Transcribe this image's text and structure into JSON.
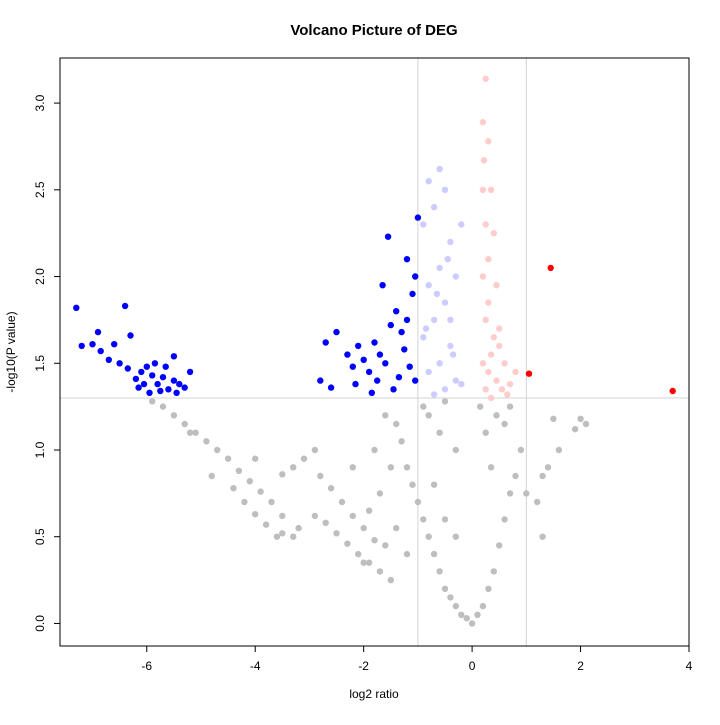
{
  "chart_data": {
    "type": "scatter",
    "title": "Volcano Picture of DEG",
    "xlabel": "log2 ratio",
    "ylabel": "-log10(P value)",
    "xlim": [
      -7.6,
      4.0
    ],
    "ylim": [
      -0.13,
      3.26
    ],
    "xticks": [
      -6,
      -4,
      -2,
      0,
      2,
      4
    ],
    "yticks": [
      0.0,
      0.5,
      1.0,
      1.5,
      2.0,
      2.5,
      3.0
    ],
    "xtick_labels": [
      "-6",
      "-4",
      "-2",
      "0",
      "2",
      "4"
    ],
    "ytick_labels": [
      "0.0",
      "0.5",
      "1.0",
      "1.5",
      "2.0",
      "2.5",
      "3.0"
    ],
    "reference_lines": {
      "vertical": [
        -1,
        1
      ],
      "horizontal": [
        1.3
      ],
      "color": "#d3d3d3"
    },
    "grid": false,
    "series": [
      {
        "role": "not-significant",
        "color": "#bebebe",
        "points": [
          [
            -5.9,
            1.28
          ],
          [
            -5.7,
            1.25
          ],
          [
            -5.5,
            1.2
          ],
          [
            -5.3,
            1.15
          ],
          [
            -5.1,
            1.1
          ],
          [
            -4.9,
            1.05
          ],
          [
            -4.7,
            1.0
          ],
          [
            -4.5,
            0.95
          ],
          [
            -4.3,
            0.88
          ],
          [
            -4.1,
            0.82
          ],
          [
            -3.9,
            0.76
          ],
          [
            -3.7,
            0.7
          ],
          [
            -3.5,
            0.62
          ],
          [
            -3.8,
            0.57
          ],
          [
            -4.0,
            0.63
          ],
          [
            -4.2,
            0.7
          ],
          [
            -3.5,
            0.52
          ],
          [
            -3.3,
            0.5
          ],
          [
            -2.9,
            0.62
          ],
          [
            -2.7,
            0.58
          ],
          [
            -2.5,
            0.52
          ],
          [
            -2.3,
            0.46
          ],
          [
            -2.1,
            0.4
          ],
          [
            -1.9,
            0.35
          ],
          [
            -1.7,
            0.3
          ],
          [
            -1.5,
            0.25
          ],
          [
            -2.9,
            1.0
          ],
          [
            -3.1,
            0.95
          ],
          [
            -3.3,
            0.9
          ],
          [
            -3.5,
            0.86
          ],
          [
            -2.8,
            0.85
          ],
          [
            -2.6,
            0.78
          ],
          [
            -2.4,
            0.7
          ],
          [
            -2.2,
            0.62
          ],
          [
            -2.0,
            0.55
          ],
          [
            -1.8,
            0.48
          ],
          [
            -1.6,
            0.45
          ],
          [
            -4.0,
            0.95
          ],
          [
            -3.6,
            0.5
          ],
          [
            -2.2,
            0.9
          ],
          [
            -1.8,
            1.0
          ],
          [
            -1.6,
            1.2
          ],
          [
            -1.4,
            1.15
          ],
          [
            -1.3,
            1.05
          ],
          [
            -1.2,
            0.9
          ],
          [
            -1.1,
            0.8
          ],
          [
            -1.0,
            0.7
          ],
          [
            -0.9,
            0.6
          ],
          [
            -0.8,
            0.5
          ],
          [
            -0.7,
            0.4
          ],
          [
            -0.6,
            0.3
          ],
          [
            -0.5,
            0.2
          ],
          [
            -0.4,
            0.15
          ],
          [
            -0.3,
            0.1
          ],
          [
            -0.2,
            0.05
          ],
          [
            -0.1,
            0.03
          ],
          [
            0.0,
            0.0
          ],
          [
            0.1,
            0.05
          ],
          [
            0.2,
            0.1
          ],
          [
            0.3,
            0.2
          ],
          [
            0.4,
            0.3
          ],
          [
            0.5,
            0.45
          ],
          [
            0.6,
            0.6
          ],
          [
            0.7,
            0.75
          ],
          [
            0.8,
            0.85
          ],
          [
            0.9,
            1.0
          ],
          [
            1.0,
            0.75
          ],
          [
            1.2,
            0.7
          ],
          [
            1.3,
            0.85
          ],
          [
            1.4,
            0.9
          ],
          [
            1.5,
            1.18
          ],
          [
            1.6,
            1.0
          ],
          [
            1.9,
            1.12
          ],
          [
            2.0,
            1.18
          ],
          [
            2.1,
            1.15
          ],
          [
            1.3,
            0.5
          ],
          [
            0.15,
            1.25
          ],
          [
            0.25,
            1.1
          ],
          [
            0.35,
            0.9
          ],
          [
            0.45,
            1.2
          ],
          [
            -0.9,
            1.25
          ],
          [
            -0.5,
            1.28
          ],
          [
            -0.3,
            1.0
          ],
          [
            -0.6,
            1.1
          ],
          [
            -0.8,
            1.2
          ],
          [
            -1.5,
            0.9
          ],
          [
            -1.7,
            0.75
          ],
          [
            -1.9,
            0.65
          ],
          [
            -0.5,
            0.6
          ],
          [
            -0.3,
            0.5
          ],
          [
            -0.7,
            0.8
          ],
          [
            -1.2,
            0.4
          ],
          [
            -1.4,
            0.55
          ],
          [
            0.6,
            1.15
          ],
          [
            0.7,
            1.25
          ],
          [
            -5.2,
            1.1
          ],
          [
            -4.8,
            0.85
          ],
          [
            -4.4,
            0.78
          ],
          [
            -3.2,
            0.55
          ],
          [
            -2.0,
            0.35
          ]
        ]
      },
      {
        "role": "down-weak",
        "color": "#ccccff",
        "points": [
          [
            -0.6,
            2.62
          ],
          [
            -0.8,
            2.55
          ],
          [
            -0.5,
            2.5
          ],
          [
            -0.7,
            2.4
          ],
          [
            -0.9,
            2.3
          ],
          [
            -0.4,
            2.2
          ],
          [
            -0.6,
            2.05
          ],
          [
            -0.8,
            1.95
          ],
          [
            -0.5,
            1.85
          ],
          [
            -0.7,
            1.75
          ],
          [
            -0.9,
            1.65
          ],
          [
            -0.4,
            1.6
          ],
          [
            -0.6,
            1.5
          ],
          [
            -0.8,
            1.45
          ],
          [
            -0.3,
            1.4
          ],
          [
            -0.5,
            1.35
          ],
          [
            -0.7,
            1.32
          ],
          [
            -0.2,
            1.38
          ],
          [
            -0.4,
            1.75
          ],
          [
            -0.3,
            2.0
          ],
          [
            -0.2,
            2.3
          ],
          [
            -0.35,
            1.55
          ],
          [
            -0.85,
            1.7
          ],
          [
            -0.65,
            1.9
          ],
          [
            -0.45,
            2.1
          ]
        ]
      },
      {
        "role": "down-significant",
        "color": "#0000ff",
        "points": [
          [
            -7.3,
            1.82
          ],
          [
            -6.4,
            1.83
          ],
          [
            -7.2,
            1.6
          ],
          [
            -7.0,
            1.61
          ],
          [
            -6.9,
            1.68
          ],
          [
            -6.85,
            1.57
          ],
          [
            -6.7,
            1.52
          ],
          [
            -6.6,
            1.61
          ],
          [
            -6.5,
            1.5
          ],
          [
            -6.35,
            1.47
          ],
          [
            -6.3,
            1.66
          ],
          [
            -6.2,
            1.41
          ],
          [
            -6.1,
            1.45
          ],
          [
            -6.0,
            1.48
          ],
          [
            -5.9,
            1.43
          ],
          [
            -5.8,
            1.38
          ],
          [
            -5.7,
            1.42
          ],
          [
            -5.6,
            1.35
          ],
          [
            -5.5,
            1.4
          ],
          [
            -5.4,
            1.38
          ],
          [
            -5.3,
            1.36
          ],
          [
            -5.2,
            1.45
          ],
          [
            -5.5,
            1.54
          ],
          [
            -6.15,
            1.36
          ],
          [
            -5.95,
            1.33
          ],
          [
            -5.75,
            1.34
          ],
          [
            -5.65,
            1.48
          ],
          [
            -5.85,
            1.5
          ],
          [
            -6.05,
            1.38
          ],
          [
            -5.45,
            1.33
          ],
          [
            -2.7,
            1.62
          ],
          [
            -2.5,
            1.68
          ],
          [
            -2.3,
            1.55
          ],
          [
            -2.2,
            1.48
          ],
          [
            -2.0,
            1.52
          ],
          [
            -1.9,
            1.45
          ],
          [
            -1.8,
            1.62
          ],
          [
            -1.7,
            1.55
          ],
          [
            -1.6,
            1.5
          ],
          [
            -1.5,
            1.72
          ],
          [
            -1.4,
            1.8
          ],
          [
            -1.3,
            1.68
          ],
          [
            -1.2,
            1.75
          ],
          [
            -1.1,
            1.9
          ],
          [
            -1.05,
            2.0
          ],
          [
            -1.0,
            2.34
          ],
          [
            -1.55,
            2.23
          ],
          [
            -1.2,
            2.1
          ],
          [
            -1.25,
            1.58
          ],
          [
            -1.15,
            1.48
          ],
          [
            -1.35,
            1.42
          ],
          [
            -1.05,
            1.4
          ],
          [
            -2.6,
            1.36
          ],
          [
            -2.8,
            1.4
          ],
          [
            -1.75,
            1.4
          ],
          [
            -1.85,
            1.33
          ],
          [
            -1.45,
            1.35
          ],
          [
            -2.15,
            1.38
          ],
          [
            -1.65,
            1.95
          ],
          [
            -2.1,
            1.6
          ]
        ]
      },
      {
        "role": "up-weak",
        "color": "#ffcccc",
        "points": [
          [
            0.25,
            3.14
          ],
          [
            0.2,
            2.89
          ],
          [
            0.3,
            2.78
          ],
          [
            0.22,
            2.67
          ],
          [
            0.35,
            2.5
          ],
          [
            0.25,
            2.3
          ],
          [
            0.4,
            2.25
          ],
          [
            0.3,
            2.1
          ],
          [
            0.2,
            2.0
          ],
          [
            0.45,
            1.95
          ],
          [
            0.3,
            1.85
          ],
          [
            0.25,
            1.75
          ],
          [
            0.4,
            1.65
          ],
          [
            0.5,
            1.6
          ],
          [
            0.35,
            1.55
          ],
          [
            0.2,
            1.5
          ],
          [
            0.6,
            1.5
          ],
          [
            0.3,
            1.45
          ],
          [
            0.45,
            1.4
          ],
          [
            0.55,
            1.35
          ],
          [
            0.7,
            1.38
          ],
          [
            0.8,
            1.45
          ],
          [
            0.25,
            1.35
          ],
          [
            0.65,
            1.32
          ],
          [
            0.5,
            1.7
          ],
          [
            0.2,
            2.5
          ],
          [
            0.35,
            1.3
          ]
        ]
      },
      {
        "role": "up-significant",
        "color": "#ff0000",
        "points": [
          [
            1.45,
            2.05
          ],
          [
            1.05,
            1.44
          ],
          [
            3.7,
            1.34
          ]
        ]
      }
    ]
  }
}
